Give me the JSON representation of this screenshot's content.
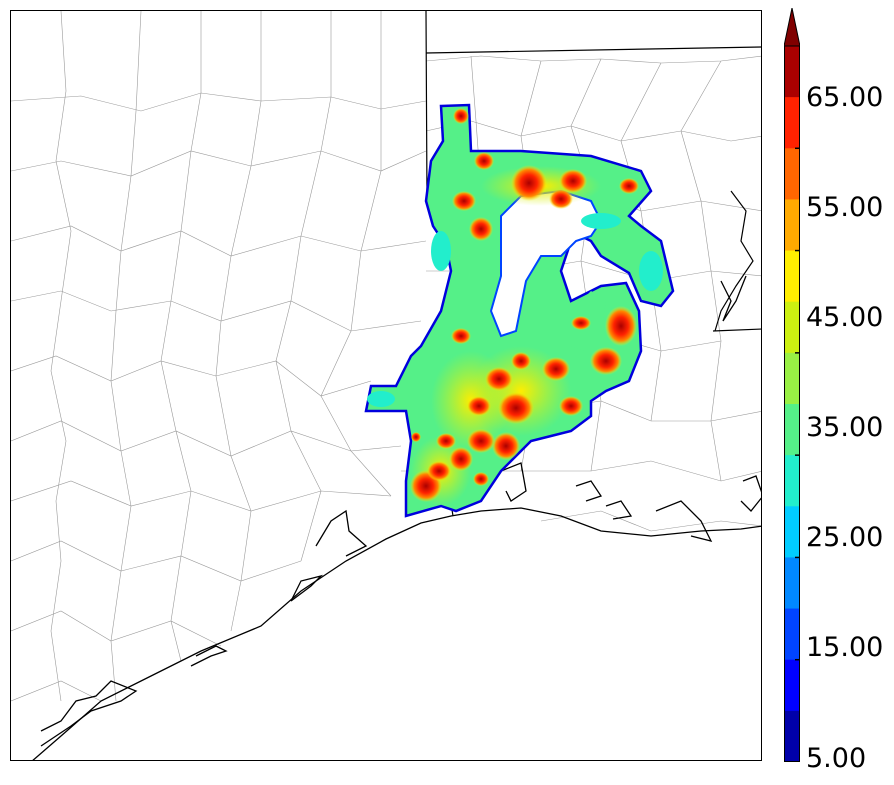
{
  "colorbar": {
    "tick_labels": [
      "5.00",
      "15.00",
      "25.00",
      "35.00",
      "45.00",
      "55.00",
      "65.00"
    ],
    "colors": [
      "#0000aa",
      "#0000ff",
      "#0044ff",
      "#0088ff",
      "#00ccff",
      "#22eecc",
      "#55f088",
      "#99f044",
      "#ccf011",
      "#ffee00",
      "#ffaa00",
      "#ff6600",
      "#ff2200",
      "#aa0000"
    ],
    "extend_color": "#800000"
  },
  "map": {
    "state_line_color": "#000000",
    "county_line_color": "#999999",
    "coast_color": "#000000"
  }
}
